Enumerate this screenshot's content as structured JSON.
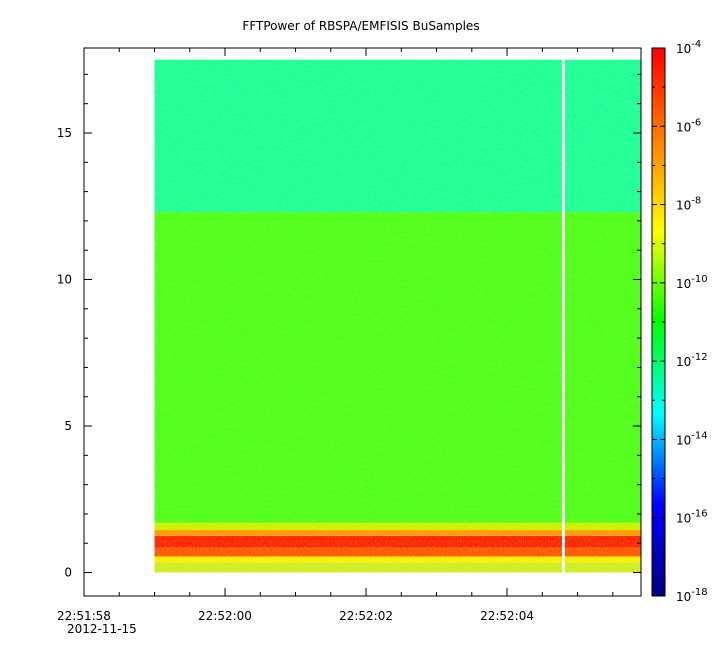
{
  "chart_data": {
    "type": "heatmap",
    "title": "FFTPower of RBSPA/EMFISIS  BuSamples",
    "xlabel": "",
    "ylabel": "",
    "x_date_label": "2012-11-15",
    "xlim": [
      "22:51:58",
      "22:52:05.9"
    ],
    "ylim": [
      -0.8,
      17.9
    ],
    "x_ticks": [
      "22:51:58",
      "22:52:00",
      "22:52:02",
      "22:52:04"
    ],
    "y_ticks": [
      0,
      5,
      10,
      15
    ],
    "z_scale": "log",
    "zlim": [
      1e-18,
      0.0001
    ],
    "colorbar_ticks": [
      {
        "base": "10",
        "exp": "-4",
        "value": 0.0001
      },
      {
        "base": "10",
        "exp": "-6",
        "value": 1e-06
      },
      {
        "base": "10",
        "exp": "-8",
        "value": 1e-08
      },
      {
        "base": "10",
        "exp": "-10",
        "value": 1e-10
      },
      {
        "base": "10",
        "exp": "-12",
        "value": 1e-12
      },
      {
        "base": "10",
        "exp": "-14",
        "value": 1e-14
      },
      {
        "base": "10",
        "exp": "-16",
        "value": 1e-16
      },
      {
        "base": "10",
        "exp": "-18",
        "value": 1e-18
      }
    ],
    "colorbar_colors": [
      "#00007f",
      "#0000ff",
      "#00ffff",
      "#00ff00",
      "#ffff00",
      "#ff7f00",
      "#ff0000"
    ],
    "data_time_range": [
      "22:51:59",
      "22:52:05.9"
    ],
    "data_gap_time": "22:52:04.8",
    "frequency_bands": [
      {
        "y0": 0.0,
        "y1": 0.35,
        "color": "#ccee22",
        "log10_power": -9.6
      },
      {
        "y0": 0.35,
        "y1": 0.55,
        "color": "#ffee00",
        "log10_power": -8.2
      },
      {
        "y0": 0.55,
        "y1": 0.85,
        "color": "#ff5500",
        "log10_power": -5.5
      },
      {
        "y0": 0.85,
        "y1": 1.25,
        "color": "#ff2200",
        "log10_power": -5.0
      },
      {
        "y0": 1.25,
        "y1": 1.45,
        "color": "#ff9900",
        "log10_power": -6.8
      },
      {
        "y0": 1.45,
        "y1": 1.7,
        "color": "#ccf000",
        "log10_power": -9.3
      },
      {
        "y0": 1.7,
        "y1": 12.3,
        "color": "#4cff1a",
        "log10_power": -10.8
      },
      {
        "y0": 12.3,
        "y1": 17.5,
        "color": "#1aff9a",
        "log10_power": -12.6
      }
    ],
    "grid": false,
    "legend": "colorbar-right"
  }
}
